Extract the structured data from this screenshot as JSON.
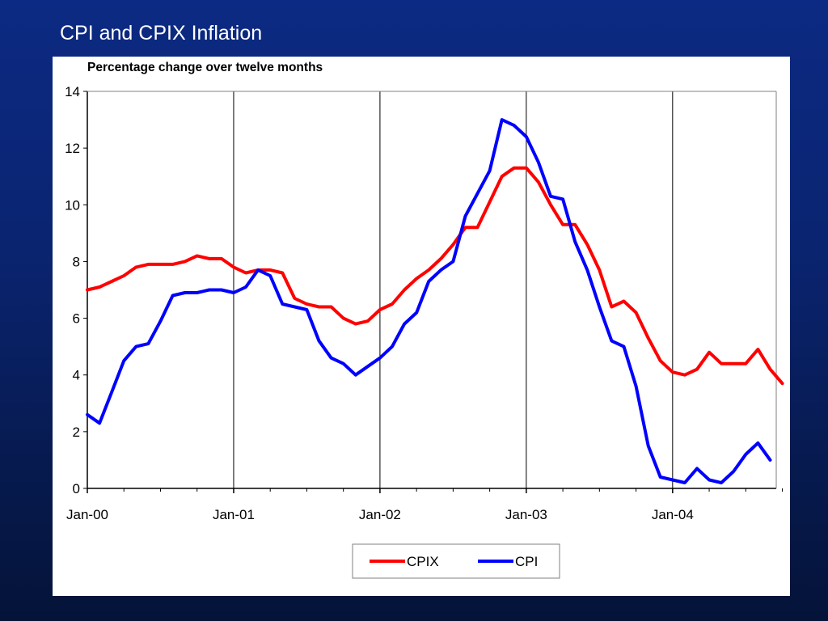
{
  "slide": {
    "title": "CPI and CPIX Inflation"
  },
  "chart_data": {
    "type": "line",
    "title": "",
    "subtitle": "Percentage change over twelve months",
    "xlabel": "",
    "ylabel": "",
    "ylim": [
      0,
      14
    ],
    "yticks": [
      0,
      2,
      4,
      6,
      8,
      10,
      12,
      14
    ],
    "x_tick_labels": [
      "Jan-00",
      "Jan-01",
      "Jan-02",
      "Jan-03",
      "Jan-04"
    ],
    "x_start": "Jan-00",
    "vertical_gridlines": [
      "Jan-01",
      "Jan-02",
      "Jan-03",
      "Jan-04"
    ],
    "legend_position": "bottom-center",
    "colors": {
      "CPIX": "#ff0000",
      "CPI": "#0000ff"
    },
    "series": [
      {
        "name": "CPIX",
        "values": [
          7.0,
          7.1,
          7.3,
          7.5,
          7.8,
          7.9,
          7.9,
          7.9,
          8.0,
          8.2,
          8.1,
          8.1,
          7.8,
          7.6,
          7.7,
          7.7,
          7.6,
          6.7,
          6.5,
          6.4,
          6.4,
          6.0,
          5.8,
          5.9,
          6.3,
          6.5,
          7.0,
          7.4,
          7.7,
          8.1,
          8.6,
          9.2,
          9.2,
          10.1,
          11.0,
          11.3,
          11.3,
          10.8,
          10.0,
          9.3,
          9.3,
          8.6,
          7.7,
          6.4,
          6.6,
          6.2,
          5.3,
          4.5,
          4.1,
          4.0,
          4.2,
          4.8,
          4.4,
          4.4,
          4.4,
          4.9,
          4.2,
          3.7
        ]
      },
      {
        "name": "CPI",
        "values": [
          2.6,
          2.3,
          3.4,
          4.5,
          5.0,
          5.1,
          5.9,
          6.8,
          6.9,
          6.9,
          7.0,
          7.0,
          6.9,
          7.1,
          7.7,
          7.5,
          6.5,
          6.4,
          6.3,
          5.2,
          4.6,
          4.4,
          4.0,
          4.3,
          4.6,
          5.0,
          5.8,
          6.2,
          7.3,
          7.7,
          8.0,
          9.6,
          10.4,
          11.2,
          13.0,
          12.8,
          12.4,
          11.5,
          10.3,
          10.2,
          8.7,
          7.7,
          6.4,
          5.2,
          5.0,
          3.6,
          1.5,
          0.4,
          0.3,
          0.2,
          0.7,
          0.3,
          0.2,
          0.6,
          1.2,
          1.6,
          1.0
        ]
      }
    ]
  }
}
